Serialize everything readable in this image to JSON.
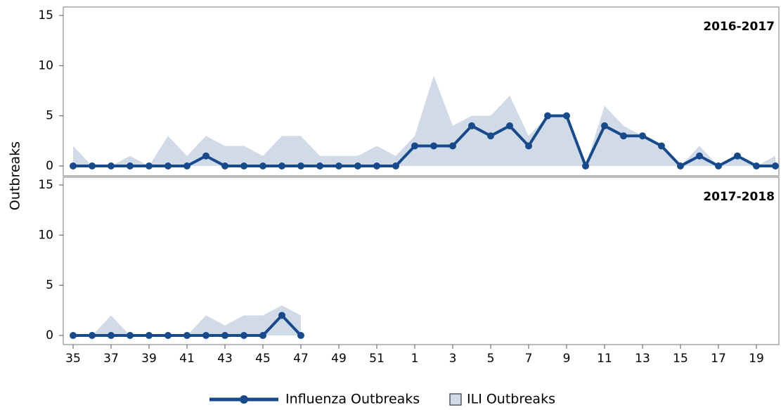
{
  "chart_data": {
    "type": "panel-line",
    "y_label": "Outbreaks",
    "categories": [
      "35",
      null,
      "37",
      null,
      "39",
      null,
      "41",
      null,
      "43",
      null,
      "45",
      null,
      "47",
      null,
      "49",
      null,
      "51",
      null,
      "1",
      null,
      "3",
      null,
      "5",
      null,
      "7",
      null,
      "9",
      null,
      "11",
      null,
      "13",
      null,
      "15",
      null,
      "17",
      null,
      "19",
      null
    ],
    "series": [
      {
        "name": "Influenza Outbreaks",
        "color": "#174a8b",
        "style": "line"
      },
      {
        "name": "ILI Outbreaks",
        "color": "#d1dae7",
        "style": "area"
      }
    ],
    "panels": [
      {
        "title": "2016-2017",
        "ylim": [
          0,
          15
        ],
        "yticks": [
          0,
          5,
          10,
          15
        ],
        "series": [
          {
            "values": [
              0,
              0,
              0,
              0,
              0,
              0,
              0,
              1,
              0,
              0,
              0,
              0,
              0,
              0,
              0,
              0,
              0,
              0,
              2,
              2,
              2,
              4,
              3,
              4,
              2,
              5,
              5,
              0,
              4,
              3,
              3,
              2,
              0,
              1,
              0,
              1,
              0,
              0
            ]
          },
          {
            "values": [
              2,
              0,
              0,
              1,
              0,
              3,
              1,
              3,
              2,
              2,
              1,
              3,
              3,
              1,
              1,
              1,
              2,
              1,
              3,
              9,
              4,
              5,
              5,
              7,
              3,
              5,
              5,
              0,
              6,
              4,
              3,
              2,
              0,
              2,
              0,
              1,
              0,
              1
            ]
          }
        ]
      },
      {
        "title": "2017-2018",
        "ylim": [
          0,
          15
        ],
        "yticks": [
          0,
          5,
          10,
          15
        ],
        "series": [
          {
            "values": [
              0,
              0,
              0,
              0,
              0,
              0,
              0,
              0,
              0,
              0,
              0,
              2,
              0,
              null,
              null,
              null,
              null,
              null,
              null,
              null,
              null,
              null,
              null,
              null,
              null,
              null,
              null,
              null,
              null,
              null,
              null,
              null,
              null,
              null,
              null,
              null,
              null,
              null
            ]
          },
          {
            "values": [
              0,
              0,
              2,
              0,
              0,
              0,
              0,
              2,
              1,
              2,
              2,
              3,
              2,
              null,
              null,
              null,
              null,
              null,
              null,
              null,
              null,
              null,
              null,
              null,
              null,
              null,
              null,
              null,
              null,
              null,
              null,
              null,
              null,
              null,
              null,
              null,
              null,
              null
            ]
          }
        ]
      }
    ]
  }
}
